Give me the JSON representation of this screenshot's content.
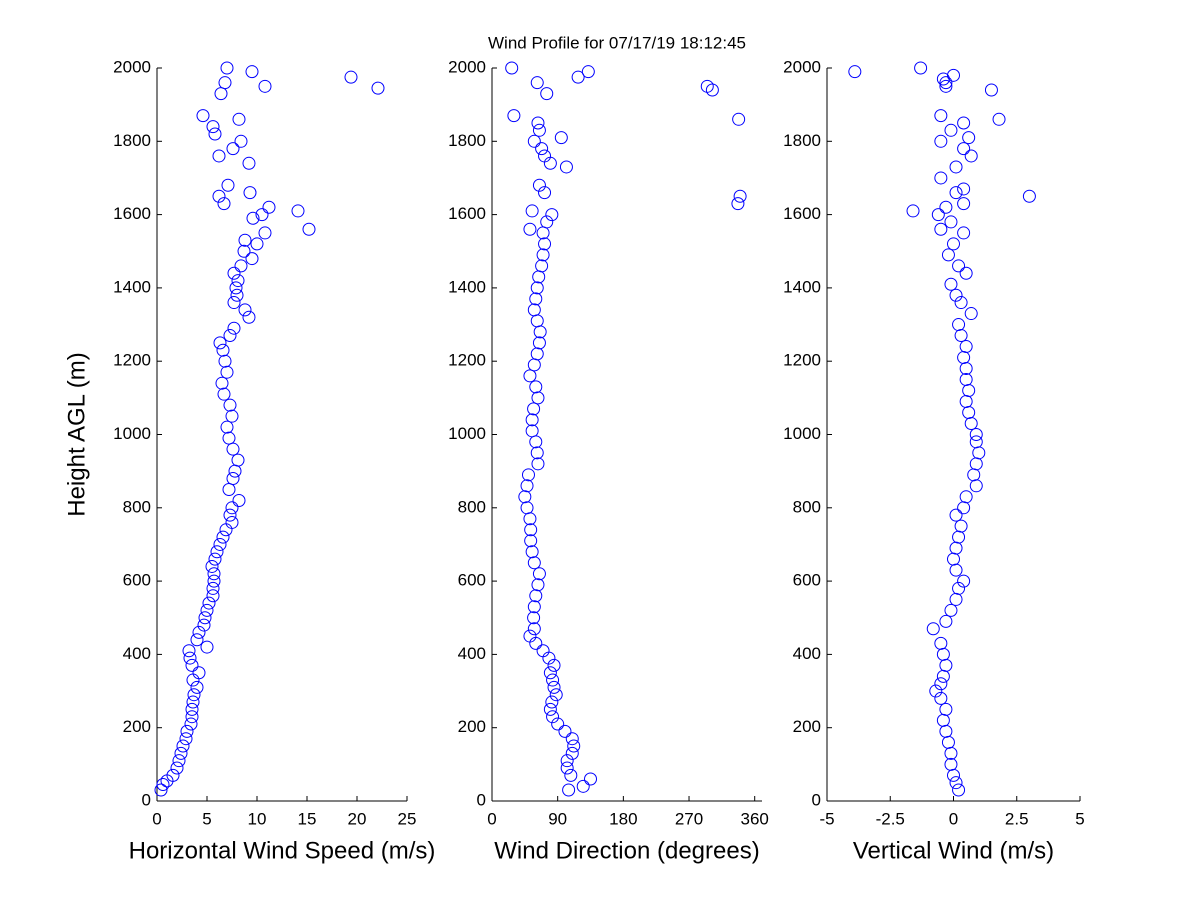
{
  "chart_data": [
    {
      "type": "scatter",
      "xlabel": "Horizontal Wind Speed (m/s)",
      "ylabel": "Height AGL (m)",
      "color": "#0000ff",
      "xlim": [
        0,
        25
      ],
      "xticks": [
        0,
        5,
        10,
        15,
        20,
        25
      ],
      "ylim": [
        0,
        2000
      ],
      "yticks": [
        0,
        200,
        400,
        600,
        800,
        1000,
        1200,
        1400,
        1600,
        1800,
        2000
      ],
      "x": [
        0.4,
        0.6,
        1.0,
        1.6,
        2.0,
        2.2,
        2.4,
        2.6,
        2.9,
        3.0,
        3.4,
        3.5,
        3.5,
        3.6,
        3.7,
        4.0,
        3.6,
        4.2,
        3.5,
        3.3,
        3.2,
        5.0,
        4.0,
        4.2,
        4.7,
        4.8,
        5.0,
        5.2,
        5.6,
        5.6,
        5.7,
        5.7,
        5.5,
        5.8,
        6.0,
        6.3,
        6.6,
        6.9,
        7.5,
        7.3,
        7.5,
        8.2,
        7.2,
        7.6,
        7.8,
        8.1,
        7.6,
        7.2,
        7.0,
        7.5,
        7.3,
        6.7,
        6.5,
        7.0,
        6.8,
        6.6,
        6.3,
        7.3,
        7.7,
        9.2,
        8.8,
        7.7,
        8.0,
        7.9,
        8.1,
        7.7,
        8.4,
        9.5,
        8.7,
        10.0,
        8.8,
        10.8,
        15.2,
        9.6,
        10.5,
        14.1,
        11.2,
        6.7,
        6.2,
        9.3,
        7.1,
        9.2,
        6.2,
        7.6,
        8.4,
        5.8,
        5.6,
        8.2,
        4.6,
        6.4,
        10.8,
        6.8,
        19.4,
        9.5,
        7.0,
        22.1
      ],
      "values": [
        30,
        45,
        55,
        70,
        90,
        110,
        130,
        150,
        170,
        190,
        210,
        230,
        250,
        270,
        290,
        310,
        330,
        350,
        370,
        390,
        410,
        420,
        440,
        460,
        480,
        500,
        520,
        540,
        560,
        580,
        600,
        620,
        640,
        660,
        680,
        700,
        720,
        740,
        760,
        780,
        800,
        820,
        850,
        880,
        900,
        930,
        960,
        990,
        1020,
        1050,
        1080,
        1110,
        1140,
        1170,
        1200,
        1230,
        1250,
        1270,
        1290,
        1320,
        1340,
        1360,
        1380,
        1400,
        1420,
        1440,
        1460,
        1480,
        1500,
        1520,
        1530,
        1550,
        1560,
        1590,
        1600,
        1610,
        1620,
        1630,
        1650,
        1660,
        1680,
        1740,
        1760,
        1780,
        1800,
        1820,
        1840,
        1860,
        1870,
        1930,
        1950,
        1960,
        1975,
        1990,
        2000,
        1945
      ]
    },
    {
      "type": "scatter",
      "title": "Wind Profile for  07/17/19 18:12:45",
      "xlabel": "Wind Direction (degrees)",
      "color": "#0000ff",
      "xlim": [
        0,
        370
      ],
      "xticks": [
        0,
        90,
        180,
        270,
        360
      ],
      "ylim": [
        0,
        2000
      ],
      "yticks": [
        0,
        200,
        400,
        600,
        800,
        1000,
        1200,
        1400,
        1600,
        1800,
        2000
      ],
      "x": [
        105,
        125,
        135,
        108,
        103,
        103,
        110,
        112,
        110,
        100,
        90,
        83,
        80,
        82,
        88,
        85,
        83,
        80,
        85,
        78,
        70,
        60,
        52,
        58,
        57,
        58,
        60,
        63,
        65,
        58,
        55,
        53,
        53,
        52,
        48,
        45,
        48,
        50,
        63,
        62,
        60,
        55,
        55,
        57,
        63,
        60,
        52,
        58,
        62,
        65,
        66,
        62,
        58,
        60,
        62,
        64,
        68,
        70,
        72,
        70,
        52,
        75,
        82,
        55,
        337,
        340,
        72,
        65,
        102,
        80,
        72,
        68,
        58,
        95,
        65,
        63,
        338,
        30,
        75,
        302,
        295,
        62,
        118,
        132,
        27
      ],
      "values": [
        30,
        40,
        60,
        70,
        90,
        110,
        130,
        150,
        170,
        190,
        210,
        230,
        250,
        270,
        290,
        310,
        330,
        350,
        370,
        390,
        410,
        430,
        450,
        470,
        500,
        530,
        560,
        590,
        620,
        650,
        680,
        710,
        740,
        770,
        800,
        830,
        860,
        890,
        920,
        950,
        980,
        1010,
        1040,
        1070,
        1100,
        1130,
        1160,
        1190,
        1220,
        1250,
        1280,
        1310,
        1340,
        1370,
        1400,
        1430,
        1460,
        1490,
        1520,
        1550,
        1560,
        1580,
        1600,
        1610,
        1630,
        1650,
        1660,
        1680,
        1730,
        1740,
        1760,
        1780,
        1800,
        1810,
        1830,
        1850,
        1860,
        1870,
        1930,
        1940,
        1950,
        1960,
        1975,
        1990,
        2000
      ]
    },
    {
      "type": "scatter",
      "xlabel": "Vertical Wind (m/s)",
      "color": "#0000ff",
      "xlim": [
        -5,
        5
      ],
      "xticks": [
        -5,
        -2.5,
        0,
        2.5,
        5
      ],
      "ylim": [
        0,
        2000
      ],
      "yticks": [
        0,
        200,
        400,
        600,
        800,
        1000,
        1200,
        1400,
        1600,
        1800,
        2000
      ],
      "x": [
        0.2,
        0.1,
        0.0,
        -0.1,
        -0.1,
        -0.2,
        -0.3,
        -0.4,
        -0.3,
        -0.5,
        -0.7,
        -0.5,
        -0.4,
        -0.3,
        -0.4,
        -0.5,
        -0.8,
        -0.3,
        -0.1,
        0.1,
        0.2,
        0.4,
        0.1,
        0.0,
        0.1,
        0.2,
        0.3,
        0.1,
        0.4,
        0.5,
        0.9,
        0.8,
        0.9,
        1.0,
        0.9,
        0.9,
        0.7,
        0.6,
        0.5,
        0.6,
        0.5,
        0.5,
        0.4,
        0.5,
        0.3,
        0.2,
        0.7,
        0.3,
        0.1,
        -0.1,
        0.5,
        0.2,
        -0.2,
        0.0,
        0.4,
        -0.5,
        -0.1,
        -0.6,
        -1.6,
        -0.3,
        0.4,
        3.0,
        0.1,
        0.4,
        -0.5,
        0.1,
        0.7,
        0.4,
        -0.5,
        0.6,
        -0.1,
        0.4,
        1.8,
        -0.5,
        1.5,
        -0.3,
        -0.3,
        -0.4,
        0.0,
        -3.9,
        -1.3
      ],
      "values": [
        30,
        50,
        70,
        100,
        130,
        160,
        190,
        220,
        250,
        280,
        300,
        320,
        340,
        370,
        400,
        430,
        470,
        490,
        520,
        550,
        580,
        600,
        630,
        660,
        690,
        720,
        750,
        780,
        800,
        830,
        860,
        890,
        920,
        950,
        980,
        1000,
        1030,
        1060,
        1090,
        1120,
        1150,
        1180,
        1210,
        1240,
        1270,
        1300,
        1330,
        1360,
        1380,
        1410,
        1440,
        1460,
        1490,
        1520,
        1550,
        1560,
        1580,
        1600,
        1610,
        1620,
        1630,
        1650,
        1660,
        1670,
        1700,
        1730,
        1760,
        1780,
        1800,
        1810,
        1830,
        1850,
        1860,
        1870,
        1940,
        1950,
        1960,
        1970,
        1980,
        1990,
        2000
      ]
    }
  ]
}
